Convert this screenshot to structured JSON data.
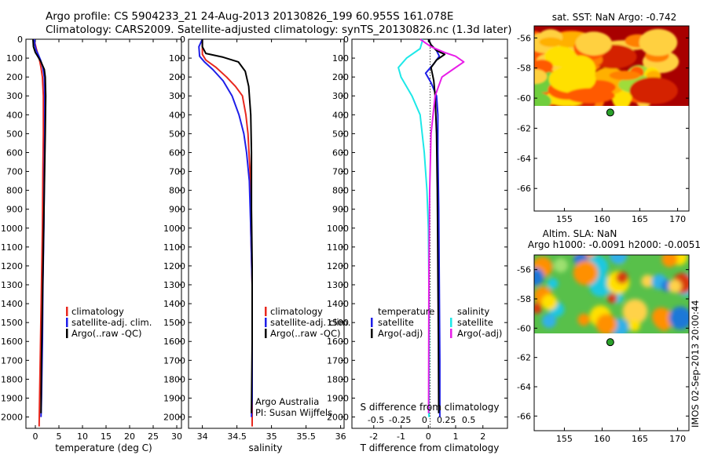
{
  "header": {
    "line1": "Argo profile: CS 5904233_21 24-Aug-2013 20130826_199 60.955S 161.078E",
    "line2": "Climatology: CARS2009. Satellite-adjusted climatology: synTS_20130826.nc (1.3d later)"
  },
  "colors": {
    "climatology": "#e8281e",
    "satellite": "#1e1ee8",
    "argo": "#000000",
    "salinity_sat": "#1ee8e8",
    "salinity_argo": "#e81ee8",
    "marker": "#2aa12a"
  },
  "chart_data": [
    {
      "type": "line",
      "id": "temperature",
      "xlabel": "temperature (deg C)",
      "xlim": [
        -2,
        31
      ],
      "ylim": [
        2060,
        0
      ],
      "xticks": [
        0,
        5,
        10,
        15,
        20,
        25,
        30
      ],
      "yticks": [
        0,
        100,
        200,
        300,
        400,
        500,
        600,
        700,
        800,
        900,
        1000,
        1100,
        1200,
        1300,
        1400,
        1500,
        1600,
        1700,
        1800,
        1900,
        2000
      ],
      "legend": [
        "climatology",
        "satellite-adj. clim.",
        "Argo(..raw -QC)"
      ],
      "series": [
        {
          "name": "climatology",
          "color": "#e8281e",
          "x": [
            -0.3,
            0.2,
            0.8,
            1.2,
            1.5,
            1.7,
            1.7,
            1.6,
            1.5,
            1.3,
            1.1,
            0.9,
            0.8
          ],
          "y": [
            0,
            50,
            100,
            150,
            200,
            300,
            500,
            700,
            1000,
            1300,
            1600,
            1900,
            2050
          ]
        },
        {
          "name": "satellite-adj. clim.",
          "color": "#1e1ee8",
          "x": [
            -0.2,
            -0.1,
            0.2,
            0.6,
            1.1,
            1.6,
            1.9,
            2.0,
            2.0,
            1.9,
            1.8,
            1.6,
            1.5,
            1.3,
            1.2
          ],
          "y": [
            0,
            30,
            60,
            80,
            110,
            150,
            200,
            300,
            500,
            700,
            1000,
            1300,
            1600,
            1900,
            2000
          ]
        },
        {
          "name": "Argo(..raw -QC)",
          "color": "#000000",
          "x": [
            -0.5,
            -0.4,
            0.0,
            0.5,
            1.2,
            1.9,
            2.1,
            2.2,
            2.1,
            1.9,
            1.7,
            1.5,
            1.3,
            1.2
          ],
          "y": [
            0,
            40,
            70,
            90,
            120,
            160,
            200,
            300,
            500,
            800,
            1100,
            1400,
            1700,
            1980
          ]
        }
      ]
    },
    {
      "type": "line",
      "id": "salinity",
      "xlabel": "salinity",
      "xlim": [
        33.8,
        36.05
      ],
      "ylim": [
        2060,
        0
      ],
      "xticks": [
        34,
        34.5,
        35,
        35.5,
        36
      ],
      "yticks": [
        0,
        100,
        200,
        300,
        400,
        500,
        600,
        700,
        800,
        900,
        1000,
        1100,
        1200,
        1300,
        1400,
        1500,
        1600,
        1700,
        1800,
        1900,
        2000
      ],
      "legend": [
        "climatology",
        "satellite-adj. clim.",
        "Argo(..raw -QC)"
      ],
      "note": [
        "Argo Australia",
        "PI: Susan Wijffels"
      ],
      "series": [
        {
          "name": "climatology",
          "color": "#e8281e",
          "x": [
            34.0,
            34.0,
            34.0,
            34.05,
            34.2,
            34.35,
            34.48,
            34.58,
            34.63,
            34.66,
            34.69,
            34.7,
            34.72,
            34.72,
            34.72,
            34.72
          ],
          "y": [
            0,
            40,
            80,
            110,
            150,
            200,
            250,
            300,
            400,
            500,
            700,
            1000,
            1300,
            1600,
            1900,
            2050
          ]
        },
        {
          "name": "satellite-adj. clim.",
          "color": "#1e1ee8",
          "x": [
            34.0,
            33.95,
            33.96,
            34.03,
            34.15,
            34.3,
            34.43,
            34.53,
            34.6,
            34.64,
            34.68,
            34.7,
            34.72,
            34.72,
            34.72,
            34.71
          ],
          "y": [
            0,
            40,
            90,
            120,
            160,
            220,
            300,
            400,
            500,
            600,
            750,
            1000,
            1300,
            1600,
            1900,
            2000
          ]
        },
        {
          "name": "Argo(..raw -QC)",
          "color": "#000000",
          "x": [
            34.0,
            34.0,
            34.05,
            34.3,
            34.52,
            34.62,
            34.67,
            34.7,
            34.71,
            34.71,
            34.72,
            34.72,
            34.71
          ],
          "y": [
            0,
            40,
            75,
            95,
            120,
            170,
            250,
            400,
            600,
            900,
            1200,
            1600,
            1980
          ]
        }
      ]
    },
    {
      "type": "line",
      "id": "difference",
      "xlabel": "T difference from climatology",
      "xlabel_top": "S difference from climatology",
      "xlim": [
        -2.8,
        2.9
      ],
      "ylim": [
        2060,
        0
      ],
      "xticks": [
        -2,
        -1,
        0,
        1,
        2
      ],
      "xticks_top": [
        "-0.5",
        "-0.25",
        "0",
        "0.25",
        "0.5"
      ],
      "yticks": [
        0,
        100,
        200,
        300,
        400,
        500,
        600,
        700,
        800,
        900,
        1000,
        1100,
        1200,
        1300,
        1400,
        1500,
        1600,
        1700,
        1800,
        1900,
        2000
      ],
      "legend_left": [
        "temperature",
        "satellite",
        "Argo(-adj)"
      ],
      "legend_right": [
        "salinity",
        "satellite",
        "Argo(-adj)"
      ],
      "series": [
        {
          "name": "temperature satellite",
          "color": "#1e1ee8",
          "x": [
            0.0,
            0.1,
            0.3,
            0.4,
            0.2,
            -0.1,
            0.1,
            0.3,
            0.35,
            0.35,
            0.38,
            0.4,
            0.42,
            0.42
          ],
          "y": [
            0,
            30,
            60,
            90,
            130,
            180,
            230,
            300,
            400,
            600,
            900,
            1300,
            1700,
            2000
          ]
        },
        {
          "name": "temperature Argo(-adj)",
          "color": "#000000",
          "x": [
            0.0,
            0.1,
            0.3,
            0.6,
            0.3,
            0.1,
            0.2,
            0.25,
            0.3,
            0.33,
            0.35,
            0.37,
            0.38
          ],
          "y": [
            0,
            30,
            60,
            80,
            110,
            150,
            220,
            300,
            500,
            800,
            1200,
            1600,
            1980
          ]
        },
        {
          "name": "salinity satellite",
          "color": "#1ee8e8",
          "x": [
            -0.2,
            -0.3,
            -0.8,
            -1.1,
            -1.0,
            -0.6,
            -0.3,
            -0.15,
            -0.05,
            0.0,
            0.02,
            0.03,
            0.02
          ],
          "y": [
            0,
            50,
            100,
            150,
            200,
            300,
            400,
            600,
            800,
            1000,
            1300,
            1600,
            2000
          ]
        },
        {
          "name": "salinity Argo(-adj)",
          "color": "#e81ee8",
          "x": [
            -0.3,
            0.1,
            0.6,
            1.0,
            1.3,
            0.9,
            0.5,
            0.25,
            0.1,
            0.05,
            0.02,
            0.01
          ],
          "y": [
            0,
            40,
            70,
            90,
            120,
            160,
            200,
            300,
            500,
            800,
            1200,
            1980
          ]
        }
      ]
    },
    {
      "type": "heatmap",
      "id": "sst-map",
      "title": "sat. SST: NaN Argo: -0.742",
      "xlim": [
        151,
        171.5
      ],
      "ylim": [
        -67.5,
        -55.2
      ],
      "xticks": [
        155,
        160,
        165,
        170
      ],
      "yticks": [
        -56,
        -58,
        -60,
        -62,
        -64,
        -66
      ],
      "data_extent_lat": [
        -60.2,
        -55.2
      ],
      "argo_position": {
        "lon": 161.078,
        "lat": -60.955
      }
    },
    {
      "type": "heatmap",
      "id": "sla-map",
      "title_line1": "Altim. SLA: NaN",
      "title_line2": "Argo h1000: -0.0091 h2000: -0.0051",
      "xlim": [
        151,
        171.5
      ],
      "ylim": [
        -67,
        -55
      ],
      "xticks": [
        155,
        160,
        165,
        170
      ],
      "yticks": [
        -56,
        -58,
        -60,
        -62,
        -64,
        -66
      ],
      "data_extent_lat": [
        -60.0,
        -55.0
      ],
      "argo_position": {
        "lon": 161.078,
        "lat": -60.955
      }
    }
  ],
  "footer": {
    "stamp": "IMOS 02-Sep-2013 20:00:44"
  }
}
